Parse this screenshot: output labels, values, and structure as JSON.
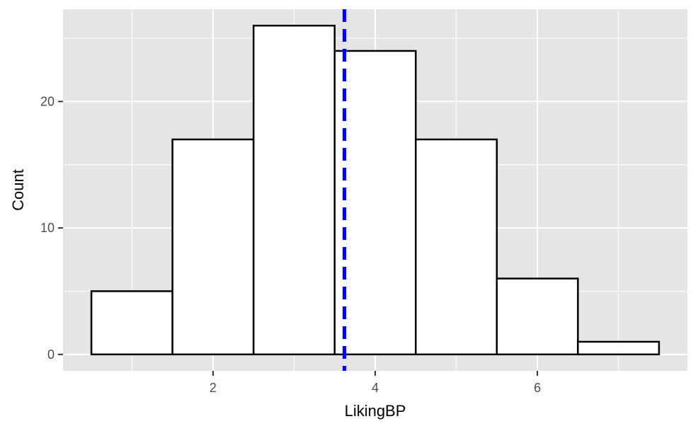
{
  "chart_data": {
    "type": "bar",
    "subtype": "histogram",
    "title": "",
    "xlabel": "LikingBP",
    "ylabel": "Count",
    "bins": [
      {
        "x0": 0.5,
        "x1": 1.5,
        "count": 5
      },
      {
        "x0": 1.5,
        "x1": 2.5,
        "count": 17
      },
      {
        "x0": 2.5,
        "x1": 3.5,
        "count": 26
      },
      {
        "x0": 3.5,
        "x1": 4.5,
        "count": 24
      },
      {
        "x0": 4.5,
        "x1": 5.5,
        "count": 17
      },
      {
        "x0": 5.5,
        "x1": 6.5,
        "count": 6
      },
      {
        "x0": 6.5,
        "x1": 7.5,
        "count": 1
      }
    ],
    "xlim": [
      0.15,
      7.85
    ],
    "ylim": [
      -1.3,
      27.3
    ],
    "x_ticks": [
      2,
      4,
      6
    ],
    "x_tick_labels": [
      "2",
      "4",
      "6"
    ],
    "y_ticks": [
      0,
      10,
      20
    ],
    "y_tick_labels": [
      "0",
      "10",
      "20"
    ],
    "x_minor_ticks": [
      1,
      3,
      5,
      7
    ],
    "y_minor_ticks": [
      5,
      15,
      25
    ],
    "reference_line": {
      "x": 3.62,
      "style": "dashed",
      "color": "#0000ff"
    },
    "grid": true,
    "legend": "none",
    "colors": {
      "panel_background": "#e5e5e5",
      "grid": "#ffffff",
      "bar_fill": "#ffffff",
      "bar_outline": "#000000"
    }
  }
}
